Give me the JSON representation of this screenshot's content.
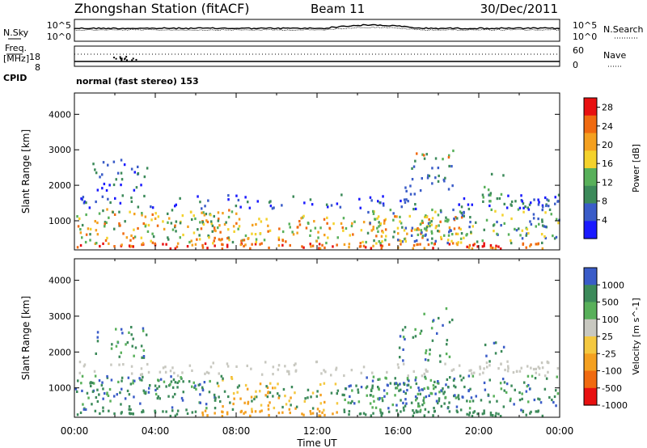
{
  "header": {
    "station": "Zhongshan Station (fitACF)",
    "beam": "Beam 11",
    "date": "30/Dec/2011",
    "cpid_label": "CPID",
    "cpid_value": "normal (fast stereo) 153"
  },
  "top_panels": {
    "nsky_label": "N.Sky",
    "nsearch_label": "N.Search",
    "nsky_ticks": [
      "10^5",
      "10^0"
    ],
    "nsearch_ticks": [
      "10^5",
      "10^0"
    ],
    "freq_label_1": "Freq.",
    "freq_label_2": "[MHz]",
    "freq_ticks": [
      "18",
      "8"
    ],
    "nave_label": "Nave",
    "nave_ticks": [
      "60",
      "0"
    ]
  },
  "colors": {
    "power_scale": [
      "#1a1aff",
      "#3a5cc8",
      "#3c8a5a",
      "#58b05a",
      "#f4d22c",
      "#f4a020",
      "#f06a10",
      "#e81010"
    ],
    "velocity_scale": [
      "#e81010",
      "#f06a10",
      "#f4a020",
      "#f4c840",
      "#c8c8c0",
      "#58b05a",
      "#3c8a5a",
      "#3a5cc8"
    ]
  },
  "chart_data": [
    {
      "type": "heatmap",
      "title": "Power",
      "ylabel": "Slant Range [km]",
      "xlabel": "Time UT",
      "ylim": [
        180,
        4600
      ],
      "xlim": [
        "00:00",
        "24:00"
      ],
      "x_ticks": [
        "00:00",
        "04:00",
        "08:00",
        "12:00",
        "16:00",
        "20:00",
        "00:00"
      ],
      "y_ticks": [
        "1000",
        "2000",
        "3000",
        "4000"
      ],
      "colorbar_label": "Power [dB]",
      "colorbar_ticks": [
        "4",
        "8",
        "12",
        "16",
        "20",
        "24",
        "28"
      ],
      "colorbar_range": [
        0,
        30
      ]
    },
    {
      "type": "heatmap",
      "title": "Velocity",
      "ylabel": "Slant Range [km]",
      "xlabel": "Time UT",
      "ylim": [
        180,
        4600
      ],
      "xlim": [
        "00:00",
        "24:00"
      ],
      "x_ticks": [
        "00:00",
        "04:00",
        "08:00",
        "12:00",
        "16:00",
        "20:00",
        "00:00"
      ],
      "y_ticks": [
        "1000",
        "2000",
        "3000",
        "4000"
      ],
      "colorbar_label": "Velocity [m s^-1]",
      "colorbar_ticks": [
        "1000",
        "500",
        "100",
        "25",
        "-25",
        "-100",
        "-500",
        "-1000"
      ]
    }
  ],
  "axis": {
    "xlabel": "Time UT"
  }
}
